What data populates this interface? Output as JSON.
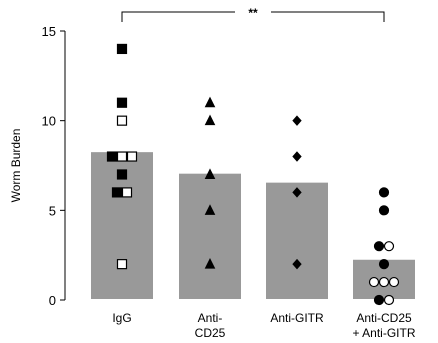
{
  "chart_data": {
    "type": "bar",
    "title": "",
    "xlabel": "",
    "ylabel": "Worm Burden",
    "ylim": [
      0,
      15
    ],
    "yticks": [
      0,
      5,
      10,
      15
    ],
    "grid": false,
    "categories": [
      [
        "IgG"
      ],
      [
        "Anti-",
        "CD25"
      ],
      [
        "Anti-GITR"
      ],
      [
        "Anti-CD25",
        "+ Anti-GITR"
      ]
    ],
    "values": [
      8.3,
      7.1,
      6.6,
      2.3
    ],
    "points": [
      [
        {
          "y": 14,
          "marker": "square-filled"
        },
        {
          "y": 11,
          "marker": "square-filled"
        },
        {
          "y": 10,
          "marker": "square-open"
        },
        {
          "y": 8,
          "marker": "square-filled"
        },
        {
          "y": 8,
          "marker": "square-open"
        },
        {
          "y": 8,
          "marker": "square-open"
        },
        {
          "y": 7,
          "marker": "square-filled"
        },
        {
          "y": 6,
          "marker": "square-filled"
        },
        {
          "y": 6,
          "marker": "square-open"
        },
        {
          "y": 2,
          "marker": "square-open"
        }
      ],
      [
        {
          "y": 11,
          "marker": "triangle-filled"
        },
        {
          "y": 10,
          "marker": "triangle-filled"
        },
        {
          "y": 7,
          "marker": "triangle-filled"
        },
        {
          "y": 5,
          "marker": "triangle-filled"
        },
        {
          "y": 2,
          "marker": "triangle-filled"
        }
      ],
      [
        {
          "y": 10,
          "marker": "diamond-filled"
        },
        {
          "y": 8,
          "marker": "diamond-filled"
        },
        {
          "y": 6,
          "marker": "diamond-filled"
        },
        {
          "y": 2,
          "marker": "diamond-filled"
        }
      ],
      [
        {
          "y": 6,
          "marker": "circle-filled"
        },
        {
          "y": 5,
          "marker": "circle-filled"
        },
        {
          "y": 3,
          "marker": "circle-filled"
        },
        {
          "y": 3,
          "marker": "circle-open"
        },
        {
          "y": 2,
          "marker": "circle-filled"
        },
        {
          "y": 1,
          "marker": "circle-open"
        },
        {
          "y": 1,
          "marker": "circle-open"
        },
        {
          "y": 1,
          "marker": "circle-open"
        },
        {
          "y": 0,
          "marker": "circle-filled"
        },
        {
          "y": 0,
          "marker": "circle-open"
        }
      ]
    ],
    "significance": {
      "from": 0,
      "to": 3,
      "label": "**"
    },
    "colors": {
      "bar": "#999999",
      "bar_border": "#ffffff",
      "marker": "#000000",
      "axis": "#000000"
    }
  }
}
